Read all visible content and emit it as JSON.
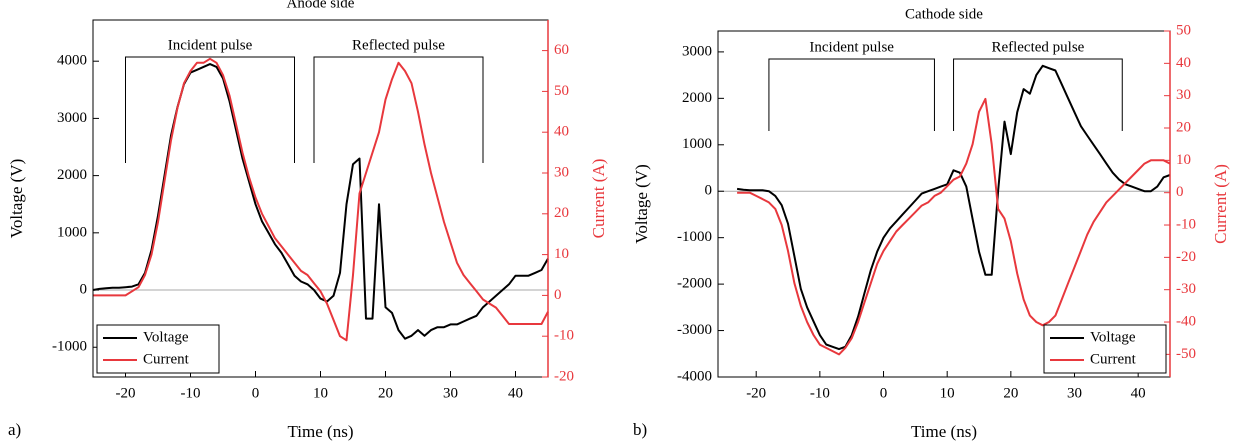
{
  "chart_data": [
    {
      "type": "line",
      "title": "Anode side",
      "label": "a)",
      "xlabel": "Time (ns)",
      "ylabel": "Voltage (V)",
      "y2label": "Current (A)",
      "annotations": [
        "Incident pulse",
        "Reflected pulse"
      ],
      "legend": "lower left",
      "xlim": [
        -25,
        45
      ],
      "xticks": [
        -20,
        -10,
        0,
        10,
        20,
        30,
        40
      ],
      "ylim": [
        -1520,
        4720
      ],
      "yticks": [
        -1000,
        0,
        1000,
        2000,
        3000,
        4000
      ],
      "y2lim": [
        -20,
        67.5
      ],
      "y2ticks": [
        -20,
        -10,
        0,
        10,
        20,
        30,
        40,
        50,
        60
      ],
      "x": [
        -25,
        -24,
        -23,
        -22,
        -21,
        -20,
        -19,
        -18,
        -17,
        -16,
        -15,
        -14,
        -13,
        -12,
        -11,
        -10,
        -9,
        -8,
        -7,
        -6,
        -5,
        -4,
        -3,
        -2,
        -1,
        0,
        1,
        2,
        3,
        4,
        5,
        6,
        7,
        8,
        9,
        10,
        11,
        12,
        13,
        14,
        15,
        16,
        17,
        18,
        19,
        20,
        21,
        22,
        23,
        24,
        25,
        26,
        27,
        28,
        29,
        30,
        31,
        32,
        33,
        34,
        35,
        36,
        37,
        38,
        39,
        40,
        41,
        42,
        43,
        44,
        45
      ],
      "series": [
        {
          "name": "Voltage",
          "color": "#000000",
          "axis": "y",
          "values": [
            0,
            20,
            30,
            40,
            40,
            50,
            60,
            100,
            300,
            700,
            1300,
            2000,
            2700,
            3200,
            3600,
            3800,
            3850,
            3900,
            3950,
            3900,
            3700,
            3300,
            2800,
            2300,
            1900,
            1500,
            1200,
            1000,
            800,
            650,
            450,
            250,
            150,
            100,
            0,
            -150,
            -200,
            -100,
            300,
            1500,
            2200,
            2300,
            -500,
            -500,
            1500,
            -300,
            -400,
            -700,
            -850,
            -800,
            -700,
            -800,
            -700,
            -650,
            -650,
            -600,
            -600,
            -550,
            -500,
            -450,
            -300,
            -200,
            -100,
            0,
            100,
            250,
            250,
            250,
            300,
            350,
            550
          ]
        },
        {
          "name": "Current",
          "color": "#e8383d",
          "axis": "y2",
          "values": [
            0,
            0,
            0,
            0,
            0,
            0,
            1,
            2,
            5,
            10,
            18,
            28,
            38,
            46,
            52,
            55,
            57,
            57,
            58,
            57,
            54,
            49,
            42,
            35,
            29,
            24,
            20,
            17,
            14,
            12,
            10,
            8,
            6,
            5,
            3,
            1,
            -2,
            -6,
            -10,
            -11,
            5,
            25,
            30,
            35,
            40,
            48,
            53,
            57,
            55,
            52,
            45,
            37,
            30,
            24,
            18,
            13,
            8,
            5,
            3,
            1,
            -1,
            -2,
            -3,
            -5,
            -7,
            -7,
            -7,
            -7,
            -7,
            -7,
            -4
          ]
        }
      ]
    },
    {
      "type": "line",
      "title": "Cathode side",
      "label": "b)",
      "xlabel": "Time (ns)",
      "ylabel": "Voltage (V)",
      "y2label": "Current (A)",
      "annotations": [
        "Incident pulse",
        "Reflected pulse"
      ],
      "legend": "lower right",
      "xlim": [
        -26,
        45
      ],
      "xticks": [
        -20,
        -10,
        0,
        10,
        20,
        30,
        40
      ],
      "ylim": [
        -4000,
        3450
      ],
      "yticks": [
        -4000,
        -3000,
        -2000,
        -1000,
        0,
        1000,
        2000,
        3000
      ],
      "y2lim": [
        -57,
        50
      ],
      "y2ticks": [
        -50,
        -40,
        -30,
        -20,
        -10,
        0,
        10,
        20,
        30,
        40,
        50
      ],
      "x": [
        -23,
        -22,
        -21,
        -20,
        -19,
        -18,
        -17,
        -16,
        -15,
        -14,
        -13,
        -12,
        -11,
        -10,
        -9,
        -8,
        -7,
        -6,
        -5,
        -4,
        -3,
        -2,
        -1,
        0,
        1,
        2,
        3,
        4,
        5,
        6,
        7,
        8,
        9,
        10,
        11,
        12,
        13,
        14,
        15,
        16,
        17,
        18,
        19,
        20,
        21,
        22,
        23,
        24,
        25,
        26,
        27,
        28,
        29,
        30,
        31,
        32,
        33,
        34,
        35,
        36,
        37,
        38,
        39,
        40,
        41,
        42,
        43,
        44,
        45
      ],
      "series": [
        {
          "name": "Voltage",
          "color": "#000000",
          "axis": "y",
          "values": [
            50,
            30,
            20,
            20,
            20,
            0,
            -100,
            -300,
            -700,
            -1400,
            -2100,
            -2500,
            -2800,
            -3100,
            -3300,
            -3350,
            -3400,
            -3350,
            -3100,
            -2700,
            -2200,
            -1700,
            -1300,
            -1000,
            -800,
            -650,
            -500,
            -350,
            -200,
            -50,
            0,
            50,
            100,
            150,
            450,
            400,
            100,
            -600,
            -1300,
            -1800,
            -1800,
            0,
            1500,
            800,
            1700,
            2200,
            2100,
            2500,
            2700,
            2650,
            2600,
            2300,
            2000,
            1700,
            1400,
            1200,
            1000,
            800,
            600,
            400,
            250,
            150,
            100,
            50,
            0,
            0,
            100,
            300,
            350
          ]
        },
        {
          "name": "Current",
          "color": "#e8383d",
          "axis": "y2",
          "values": [
            0,
            0,
            0,
            -1,
            -2,
            -3,
            -5,
            -10,
            -18,
            -28,
            -35,
            -40,
            -44,
            -47,
            -48,
            -49,
            -50,
            -48,
            -45,
            -40,
            -34,
            -28,
            -22,
            -18,
            -15,
            -12,
            -10,
            -8,
            -6,
            -4,
            -3,
            -1,
            0,
            2,
            4,
            5,
            9,
            15,
            25,
            29,
            15,
            -5,
            -8,
            -15,
            -25,
            -33,
            -38,
            -40,
            -41,
            -40,
            -38,
            -33,
            -28,
            -23,
            -18,
            -13,
            -9,
            -6,
            -3,
            -1,
            1,
            3,
            5,
            7,
            9,
            10,
            10,
            10,
            9
          ]
        }
      ]
    }
  ]
}
